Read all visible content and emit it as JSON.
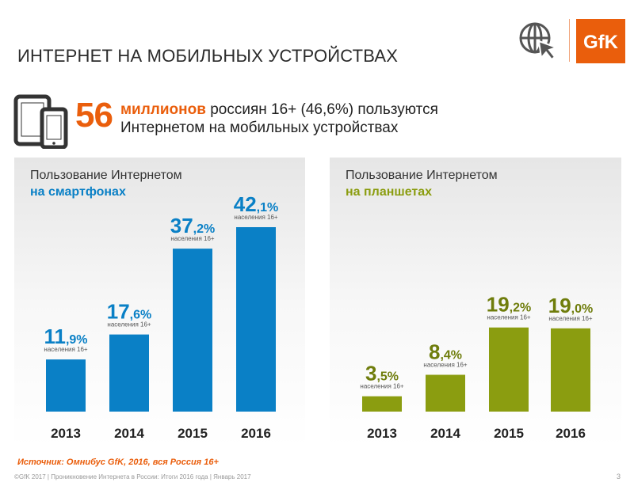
{
  "page": {
    "title": "ИНТЕРНЕТ НА МОБИЛЬНЫХ УСТРОЙСТВАХ",
    "logo_text": "GfK"
  },
  "headline": {
    "number": "56",
    "emphasis": "миллионов",
    "line1_rest": " россиян 16+ (46,6%) пользуются",
    "line2": "Интернетом на мобильных устройствах"
  },
  "colors": {
    "accent": "#ea5e0c",
    "smartphone_bar": "#0a80c6",
    "tablet_bar": "#8b9d10",
    "tablet_value": "#6f7d0c"
  },
  "chart_data": [
    {
      "type": "bar",
      "title": "Пользование Интернетом",
      "subtitle": "на смартфонах",
      "categories": [
        "2013",
        "2014",
        "2015",
        "2016"
      ],
      "values": [
        11.9,
        17.6,
        37.2,
        42.1
      ],
      "value_labels": [
        {
          "int": "11",
          "frac": ",9%"
        },
        {
          "int": "17",
          "frac": ",6%"
        },
        {
          "int": "37",
          "frac": ",2%"
        },
        {
          "int": "42",
          "frac": ",1%"
        }
      ],
      "note": "населения 16+",
      "ylim": [
        0,
        42.1
      ],
      "grid": false
    },
    {
      "type": "bar",
      "title": "Пользование Интернетом",
      "subtitle": "на планшетах",
      "categories": [
        "2013",
        "2014",
        "2015",
        "2016"
      ],
      "values": [
        3.5,
        8.4,
        19.2,
        19.0
      ],
      "value_labels": [
        {
          "int": "3",
          "frac": ",5%"
        },
        {
          "int": "8",
          "frac": ",4%"
        },
        {
          "int": "19",
          "frac": ",2%"
        },
        {
          "int": "19",
          "frac": ",0%"
        }
      ],
      "note": "населения 16+",
      "ylim": [
        0,
        42.1
      ],
      "grid": false
    }
  ],
  "source": "Источник: Омнибус GfK, 2016, вся Россия 16+",
  "footer": "©GfK 2017 | Проникновение Интернета в России: Итоги 2016 года | Январь 2017",
  "page_number": "3"
}
